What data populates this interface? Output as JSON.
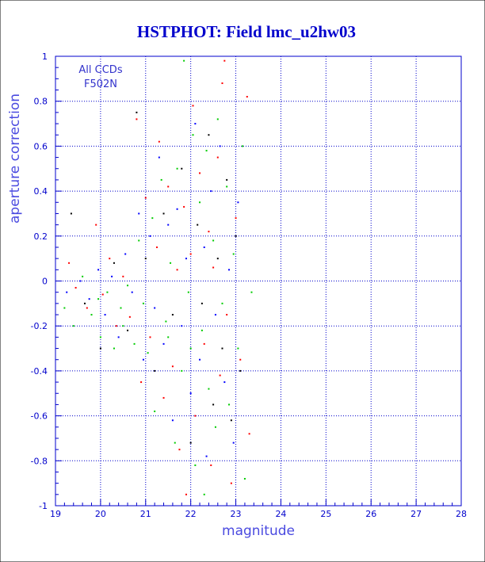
{
  "chart_data": {
    "type": "scatter",
    "title": "HSTPHOT: Field lmc_u2hw03",
    "xlabel": "magnitude",
    "ylabel": "aperture correction",
    "annotation": [
      "All CCDs",
      "F502N"
    ],
    "xlim": [
      19,
      28
    ],
    "ylim": [
      -1,
      1
    ],
    "xticks": [
      19,
      20,
      21,
      22,
      23,
      24,
      25,
      26,
      27,
      28
    ],
    "yticks": [
      -1,
      -0.8,
      -0.6,
      -0.4,
      -0.2,
      0,
      0.2,
      0.4,
      0.6,
      0.8,
      1
    ],
    "xtick_labels": [
      "19",
      "20",
      "21",
      "22",
      "23",
      "24",
      "25",
      "26",
      "27",
      "28"
    ],
    "ytick_labels": [
      "-1",
      "-0.8",
      "-0.6",
      "-0.4",
      "-0.2",
      "0",
      "0.2",
      "0.4",
      "0.6",
      "0.8",
      "1"
    ],
    "grid": true,
    "colors": {
      "axis": "#0000cc",
      "red": "#ff0000",
      "green": "#00cc00",
      "blue": "#0000ff",
      "black": "#000000"
    },
    "series": [
      {
        "color": "#ff0000",
        "points": [
          [
            19.3,
            0.08
          ],
          [
            19.45,
            -0.03
          ],
          [
            19.7,
            -0.12
          ],
          [
            19.9,
            0.25
          ],
          [
            20.05,
            -0.06
          ],
          [
            20.2,
            0.1
          ],
          [
            20.35,
            -0.2
          ],
          [
            20.5,
            0.02
          ],
          [
            20.65,
            -0.16
          ],
          [
            20.8,
            0.72
          ],
          [
            20.9,
            -0.45
          ],
          [
            21.0,
            0.37
          ],
          [
            21.1,
            -0.25
          ],
          [
            21.25,
            0.15
          ],
          [
            21.3,
            0.62
          ],
          [
            21.4,
            -0.52
          ],
          [
            21.5,
            0.42
          ],
          [
            21.6,
            -0.38
          ],
          [
            21.7,
            0.05
          ],
          [
            21.75,
            -0.75
          ],
          [
            21.85,
            0.33
          ],
          [
            21.9,
            -0.95
          ],
          [
            22.0,
            0.12
          ],
          [
            22.05,
            0.78
          ],
          [
            22.1,
            -0.6
          ],
          [
            22.2,
            0.48
          ],
          [
            22.3,
            -0.28
          ],
          [
            22.4,
            0.22
          ],
          [
            22.45,
            -0.82
          ],
          [
            22.5,
            0.06
          ],
          [
            22.6,
            0.55
          ],
          [
            22.65,
            -0.42
          ],
          [
            22.7,
            0.88
          ],
          [
            22.8,
            -0.15
          ],
          [
            22.9,
            -0.9
          ],
          [
            23.0,
            0.28
          ],
          [
            23.1,
            -0.35
          ],
          [
            23.25,
            0.82
          ],
          [
            23.3,
            -0.68
          ],
          [
            22.75,
            0.98
          ]
        ]
      },
      {
        "color": "#00cc00",
        "points": [
          [
            19.2,
            -0.12
          ],
          [
            19.4,
            -0.2
          ],
          [
            19.6,
            0.02
          ],
          [
            19.8,
            -0.15
          ],
          [
            20.0,
            -0.25
          ],
          [
            20.15,
            -0.05
          ],
          [
            20.3,
            -0.3
          ],
          [
            20.45,
            -0.12
          ],
          [
            20.6,
            -0.02
          ],
          [
            20.75,
            -0.28
          ],
          [
            20.85,
            0.18
          ],
          [
            20.95,
            -0.1
          ],
          [
            21.05,
            -0.32
          ],
          [
            21.15,
            0.28
          ],
          [
            21.2,
            -0.58
          ],
          [
            21.35,
            0.45
          ],
          [
            21.45,
            -0.18
          ],
          [
            21.55,
            0.08
          ],
          [
            21.65,
            -0.72
          ],
          [
            21.7,
            0.5
          ],
          [
            21.8,
            -0.4
          ],
          [
            21.85,
            0.98
          ],
          [
            21.95,
            -0.05
          ],
          [
            22.05,
            0.65
          ],
          [
            22.1,
            -0.82
          ],
          [
            22.2,
            0.35
          ],
          [
            22.25,
            -0.22
          ],
          [
            22.35,
            0.58
          ],
          [
            22.4,
            -0.48
          ],
          [
            22.5,
            0.18
          ],
          [
            22.55,
            -0.65
          ],
          [
            22.6,
            0.72
          ],
          [
            22.7,
            -0.1
          ],
          [
            22.8,
            0.42
          ],
          [
            22.85,
            -0.55
          ],
          [
            22.95,
            0.12
          ],
          [
            23.05,
            -0.3
          ],
          [
            23.15,
            0.6
          ],
          [
            23.2,
            -0.88
          ],
          [
            23.35,
            -0.05
          ],
          [
            22.0,
            -0.3
          ],
          [
            21.5,
            -0.25
          ],
          [
            20.5,
            -0.2
          ],
          [
            19.95,
            -0.08
          ],
          [
            22.3,
            -0.95
          ]
        ]
      },
      {
        "color": "#0000ff",
        "points": [
          [
            19.25,
            -0.05
          ],
          [
            19.55,
            0.0
          ],
          [
            19.75,
            -0.08
          ],
          [
            19.95,
            0.05
          ],
          [
            20.1,
            -0.15
          ],
          [
            20.25,
            0.02
          ],
          [
            20.4,
            -0.25
          ],
          [
            20.55,
            0.12
          ],
          [
            20.7,
            -0.05
          ],
          [
            20.85,
            0.3
          ],
          [
            20.95,
            -0.35
          ],
          [
            21.1,
            0.2
          ],
          [
            21.2,
            -0.12
          ],
          [
            21.3,
            0.55
          ],
          [
            21.4,
            -0.28
          ],
          [
            21.5,
            0.25
          ],
          [
            21.6,
            -0.62
          ],
          [
            21.7,
            0.32
          ],
          [
            21.8,
            -0.2
          ],
          [
            21.9,
            0.1
          ],
          [
            22.0,
            -0.5
          ],
          [
            22.1,
            0.7
          ],
          [
            22.2,
            -0.35
          ],
          [
            22.3,
            0.15
          ],
          [
            22.35,
            -0.78
          ],
          [
            22.45,
            0.4
          ],
          [
            22.55,
            -0.15
          ],
          [
            22.65,
            0.6
          ],
          [
            22.75,
            -0.45
          ],
          [
            22.85,
            0.05
          ],
          [
            22.95,
            -0.72
          ],
          [
            23.05,
            0.35
          ]
        ]
      },
      {
        "color": "#000000",
        "points": [
          [
            19.35,
            0.3
          ],
          [
            19.65,
            -0.1
          ],
          [
            20.0,
            -0.3
          ],
          [
            20.3,
            0.08
          ],
          [
            20.6,
            -0.22
          ],
          [
            20.8,
            0.75
          ],
          [
            21.0,
            0.1
          ],
          [
            21.2,
            -0.4
          ],
          [
            21.4,
            0.3
          ],
          [
            21.6,
            -0.15
          ],
          [
            21.8,
            0.5
          ],
          [
            22.0,
            -0.72
          ],
          [
            22.15,
            0.25
          ],
          [
            22.25,
            -0.1
          ],
          [
            22.4,
            0.65
          ],
          [
            22.5,
            -0.55
          ],
          [
            22.6,
            0.1
          ],
          [
            22.7,
            -0.3
          ],
          [
            22.8,
            0.45
          ],
          [
            22.9,
            -0.62
          ],
          [
            23.0,
            0.2
          ],
          [
            23.1,
            -0.4
          ]
        ]
      }
    ]
  }
}
